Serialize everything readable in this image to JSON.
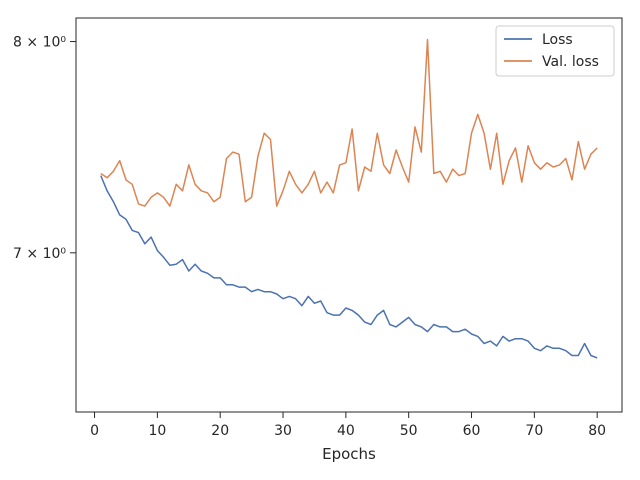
{
  "chart_data": {
    "type": "line",
    "title": "",
    "xlabel": "Epochs",
    "ylabel": "",
    "y_scale": "log",
    "xlim": [
      -2.95,
      83.95
    ],
    "ylim": [
      6.33,
      8.12
    ],
    "x_ticks": [
      0,
      10,
      20,
      30,
      40,
      50,
      60,
      70,
      80
    ],
    "y_ticks": [
      {
        "value": 7,
        "label": "7 × 10⁰"
      },
      {
        "value": 8,
        "label": "8 × 10⁰"
      }
    ],
    "grid": false,
    "legend_position": "top-right",
    "x": [
      1,
      2,
      3,
      4,
      5,
      6,
      7,
      8,
      9,
      10,
      11,
      12,
      13,
      14,
      15,
      16,
      17,
      18,
      19,
      20,
      21,
      22,
      23,
      24,
      25,
      26,
      27,
      28,
      29,
      30,
      31,
      32,
      33,
      34,
      35,
      36,
      37,
      38,
      39,
      40,
      41,
      42,
      43,
      44,
      45,
      46,
      47,
      48,
      49,
      50,
      51,
      52,
      53,
      54,
      55,
      56,
      57,
      58,
      59,
      60,
      61,
      62,
      63,
      64,
      65,
      66,
      67,
      68,
      69,
      70,
      71,
      72,
      73,
      74,
      75,
      76,
      77,
      78,
      79,
      80
    ],
    "series": [
      {
        "name": "Loss",
        "color": "#4c72b0",
        "values": [
          7.35,
          7.28,
          7.23,
          7.17,
          7.15,
          7.1,
          7.09,
          7.04,
          7.07,
          7.01,
          6.98,
          6.945,
          6.95,
          6.97,
          6.92,
          6.95,
          6.92,
          6.91,
          6.89,
          6.89,
          6.86,
          6.86,
          6.85,
          6.85,
          6.83,
          6.84,
          6.83,
          6.83,
          6.82,
          6.8,
          6.81,
          6.8,
          6.77,
          6.81,
          6.78,
          6.79,
          6.74,
          6.73,
          6.73,
          6.76,
          6.75,
          6.73,
          6.7,
          6.69,
          6.73,
          6.75,
          6.69,
          6.68,
          6.7,
          6.72,
          6.69,
          6.68,
          6.66,
          6.69,
          6.68,
          6.68,
          6.66,
          6.66,
          6.67,
          6.65,
          6.64,
          6.61,
          6.62,
          6.6,
          6.64,
          6.62,
          6.63,
          6.63,
          6.62,
          6.59,
          6.58,
          6.6,
          6.59,
          6.59,
          6.58,
          6.56,
          6.56,
          6.61,
          6.56,
          6.55
        ]
      },
      {
        "name": "Val. loss",
        "color": "#dd8452",
        "values": [
          7.36,
          7.34,
          7.37,
          7.42,
          7.33,
          7.31,
          7.22,
          7.21,
          7.25,
          7.27,
          7.25,
          7.21,
          7.31,
          7.28,
          7.4,
          7.31,
          7.28,
          7.27,
          7.23,
          7.25,
          7.43,
          7.46,
          7.45,
          7.23,
          7.25,
          7.44,
          7.55,
          7.52,
          7.21,
          7.28,
          7.37,
          7.31,
          7.27,
          7.31,
          7.37,
          7.27,
          7.32,
          7.27,
          7.4,
          7.41,
          7.57,
          7.28,
          7.39,
          7.37,
          7.55,
          7.4,
          7.36,
          7.47,
          7.39,
          7.32,
          7.58,
          7.46,
          8.01,
          7.36,
          7.37,
          7.32,
          7.38,
          7.35,
          7.36,
          7.55,
          7.64,
          7.55,
          7.38,
          7.55,
          7.31,
          7.42,
          7.48,
          7.32,
          7.49,
          7.41,
          7.38,
          7.41,
          7.39,
          7.4,
          7.43,
          7.33,
          7.51,
          7.38,
          7.45,
          7.48
        ]
      }
    ]
  }
}
